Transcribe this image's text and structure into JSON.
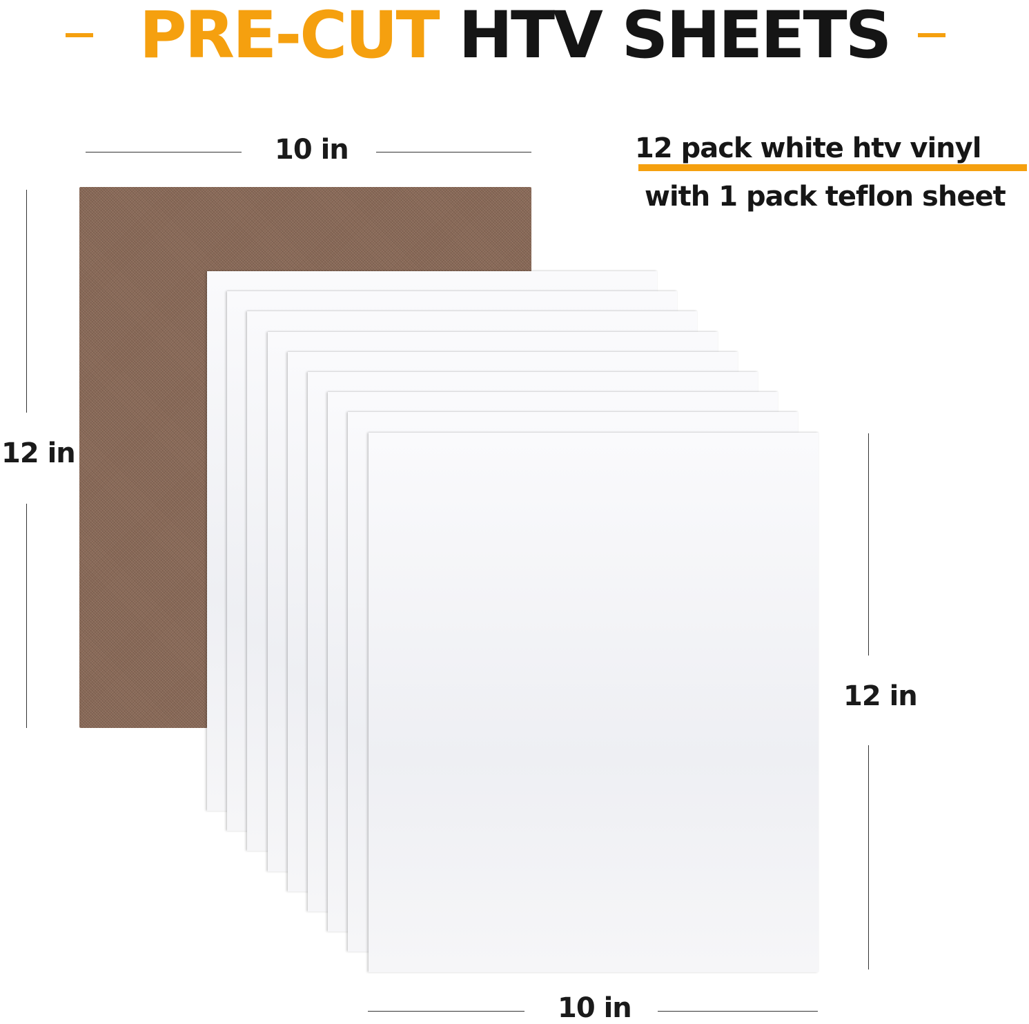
{
  "title": {
    "highlight": "PRE-CUT",
    "rest": "HTV SHEETS"
  },
  "dimensions": {
    "top_width": "10 in",
    "left_height": "12 in",
    "right_height": "12 in",
    "bottom_width": "10 in"
  },
  "note": {
    "line1": "12 pack white htv vinyl",
    "line2": "with 1 pack teflon sheet"
  },
  "colors": {
    "accent": "#f5a00f",
    "teflon": "#8a6a58",
    "text": "#151515"
  },
  "white_sheet_count_shown": 9
}
